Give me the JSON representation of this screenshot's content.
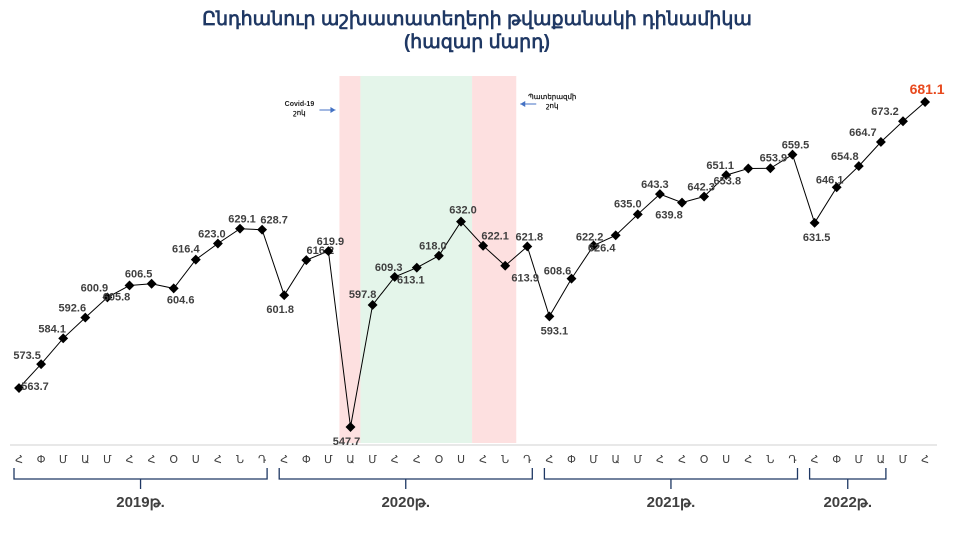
{
  "title_line1": "Ընդհանուր աշխատատեղերի թվաքանակի դինամիկա",
  "title_line2": "(հազար մարդ)",
  "annotations": {
    "covid_line1": "Covid-19",
    "covid_line2": "շոկ",
    "war_line1": "Պատերազմի",
    "war_line2": "շոկ"
  },
  "colors": {
    "line": "#000000",
    "marker": "#000000",
    "covid_shade": "#fde0e0",
    "recovery_shade": "#e4f5ea",
    "war_shade": "#fde0e0",
    "last_value": "#e8491d",
    "title": "#1f3864",
    "arrow": "#4472c4"
  },
  "chart_data": {
    "type": "line",
    "title": "Ընդհանուր աշխատատեղերի թվաքանակի դինամիկա (հազար մարդ)",
    "xlabel": "",
    "ylabel": "",
    "grid": false,
    "legend": "none",
    "ylim": [
      540,
      690
    ],
    "months": [
      "Հ",
      "Փ",
      "Մ",
      "Ա",
      "Մ",
      "Հ",
      "Հ",
      "Օ",
      "Ս",
      "Հ",
      "Ն",
      "Դ",
      "Հ",
      "Փ",
      "Մ",
      "Ա",
      "Մ",
      "Հ",
      "Հ",
      "Օ",
      "Ս",
      "Հ",
      "Ն",
      "Դ",
      "Հ",
      "Փ",
      "Մ",
      "Ա",
      "Մ",
      "Հ",
      "Հ",
      "Օ",
      "Ս",
      "Հ",
      "Ն",
      "Դ",
      "Հ",
      "Փ",
      "Մ",
      "Ա",
      "Մ",
      "Հ"
    ],
    "years": [
      {
        "label": "2019թ.",
        "start": 0,
        "end": 11
      },
      {
        "label": "2020թ.",
        "start": 12,
        "end": 23
      },
      {
        "label": "2021թ.",
        "start": 24,
        "end": 35
      },
      {
        "label": "2022թ.",
        "start": 36,
        "end": 39
      }
    ],
    "values": [
      563.7,
      573.5,
      584.1,
      592.6,
      600.9,
      605.8,
      606.5,
      604.6,
      616.4,
      623.0,
      629.1,
      628.7,
      601.8,
      616.2,
      619.9,
      547.7,
      597.8,
      609.3,
      613.1,
      618.0,
      632.0,
      622.1,
      613.9,
      621.8,
      593.1,
      608.6,
      622.2,
      626.4,
      635.0,
      643.3,
      639.8,
      642.3,
      651.1,
      653.8,
      653.9,
      659.5,
      631.5,
      646.1,
      654.8,
      664.7,
      673.2,
      681.1
    ],
    "shaded_periods": [
      {
        "name": "Covid-19 շոկ",
        "from": 14.5,
        "to": 15.45
      },
      {
        "name": "recovery",
        "from": 15.45,
        "to": 20.5
      },
      {
        "name": "Պատերազմի շոկ",
        "from": 20.5,
        "to": 22.5
      }
    ]
  }
}
